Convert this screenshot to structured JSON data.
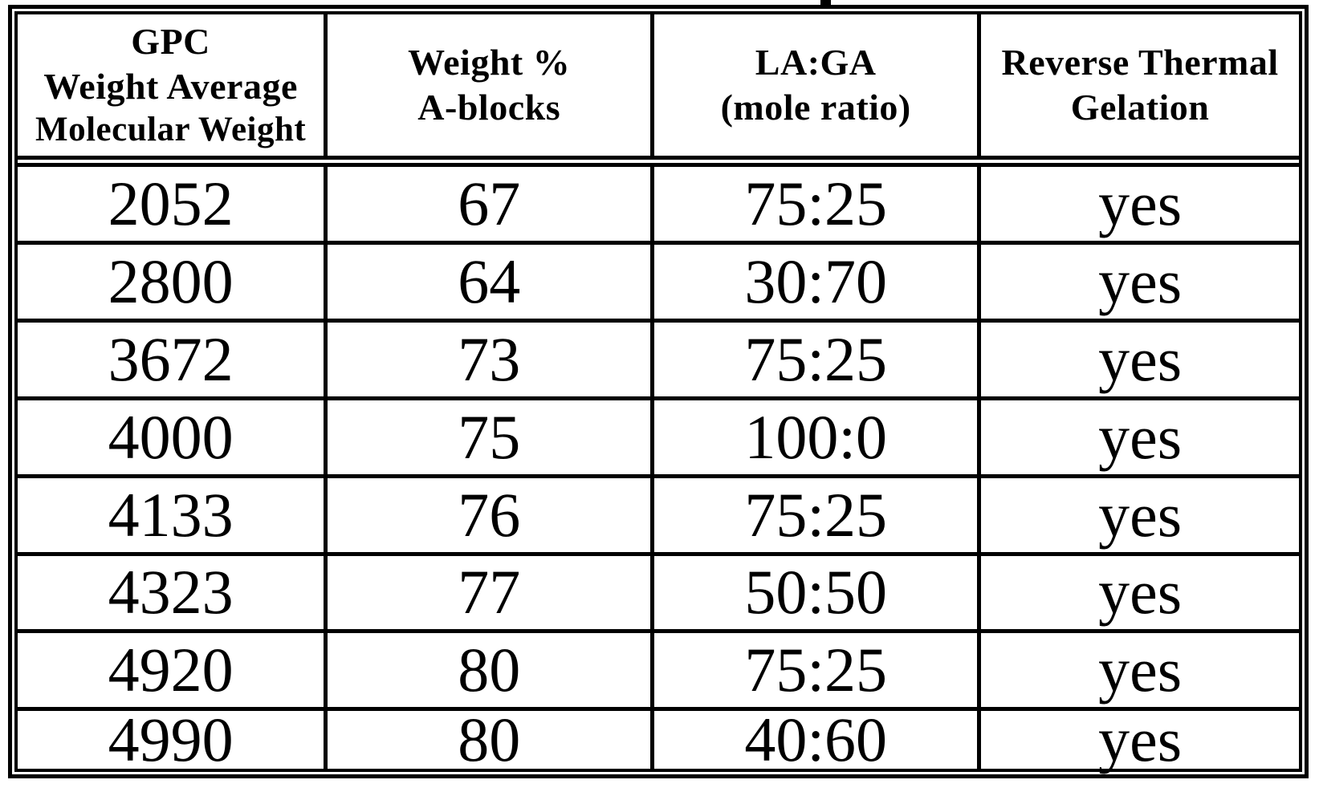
{
  "page": {
    "description": "Scanned document page containing a single ruled data table",
    "background_color": "#ffffff",
    "ink_color": "#000000"
  },
  "artifacts": {
    "top_caption_descender": "partial descender stroke of cropped caption text above the table",
    "stray_speck": "small scan speck right of the Weight % header"
  },
  "table": {
    "headers": [
      {
        "lines": [
          "GPC",
          "Weight Average",
          "Molecular Weight"
        ]
      },
      {
        "lines": [
          "Weight %",
          "A-blocks"
        ]
      },
      {
        "lines": [
          "LA:GA",
          "(mole ratio)"
        ]
      },
      {
        "lines": [
          "Reverse Thermal",
          "Gelation"
        ]
      }
    ],
    "rows": [
      [
        "2052",
        "67",
        "75:25",
        "yes"
      ],
      [
        "2800",
        "64",
        "30:70",
        "yes"
      ],
      [
        "3672",
        "73",
        "75:25",
        "yes"
      ],
      [
        "4000",
        "75",
        "100:0",
        "yes"
      ],
      [
        "4133",
        "76",
        "75:25",
        "yes"
      ],
      [
        "4323",
        "77",
        "50:50",
        "yes"
      ],
      [
        "4920",
        "80",
        "75:25",
        "yes"
      ],
      [
        "4990",
        "80",
        "40:60",
        "yes"
      ]
    ]
  }
}
